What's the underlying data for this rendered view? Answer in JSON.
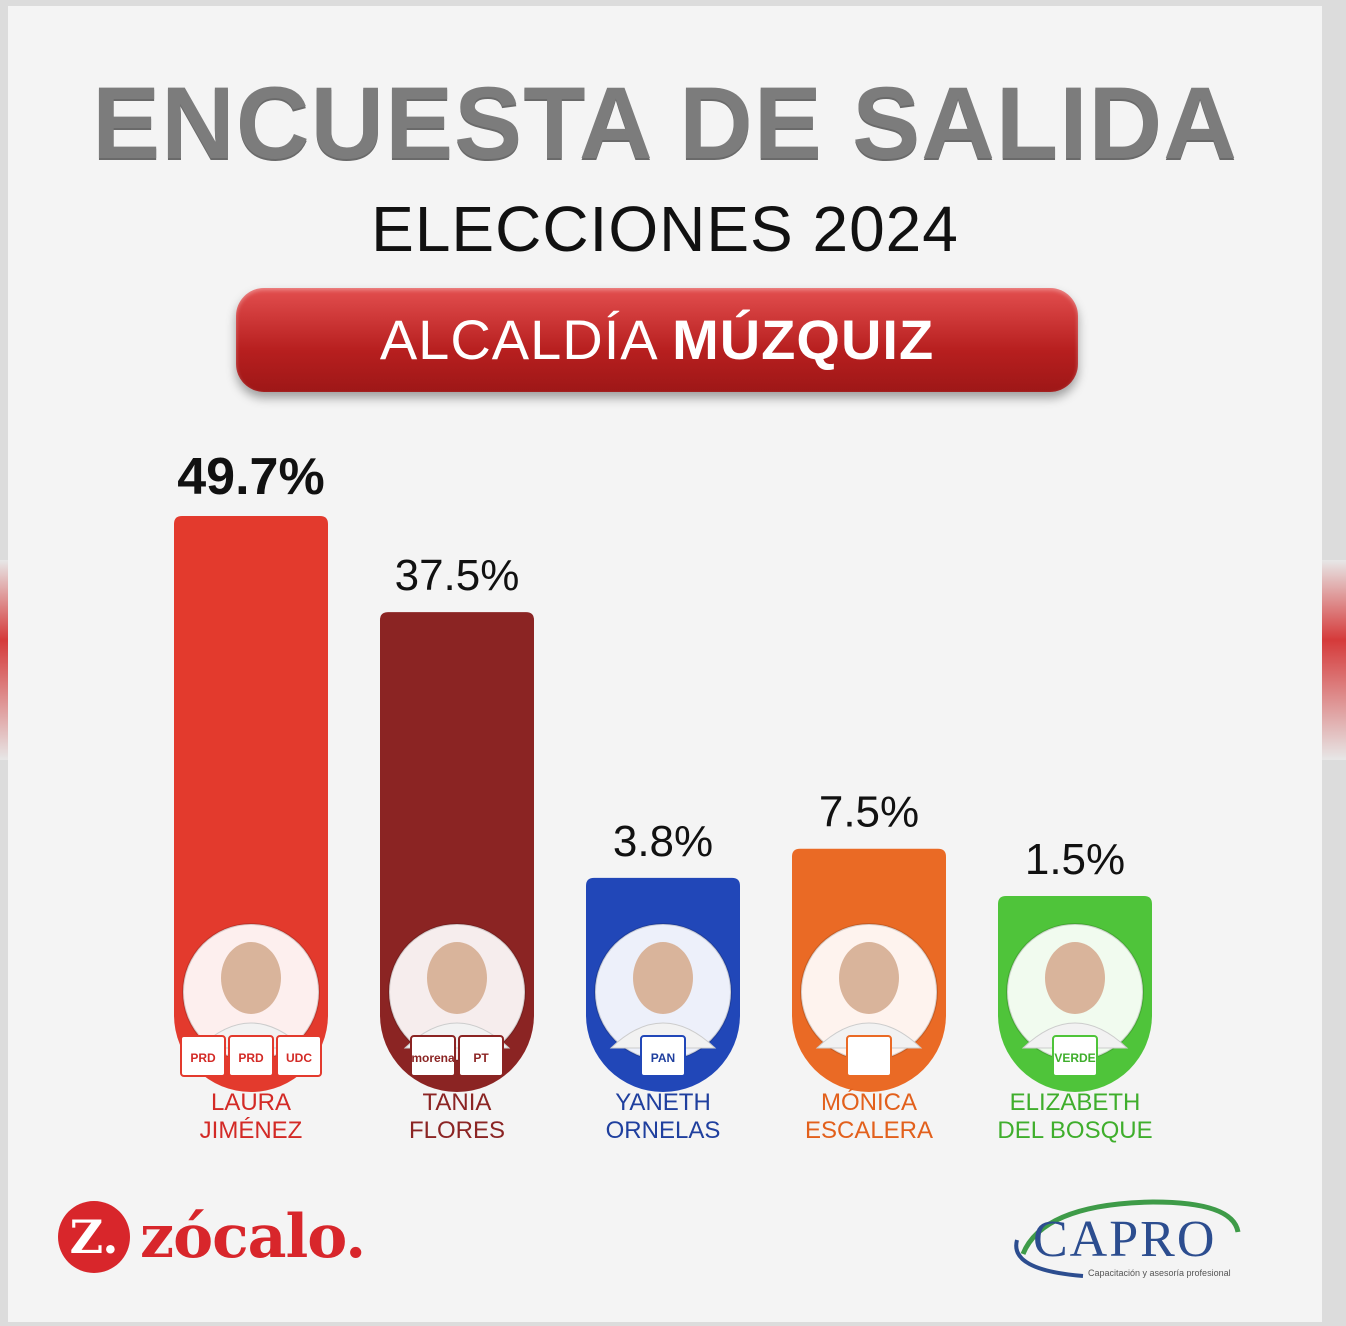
{
  "header": {
    "title": "ENCUESTA DE SALIDA",
    "subtitle": "ELECCIONES 2024",
    "pill_regular": "ALCALDÍA",
    "pill_bold": "MÚZQUIZ"
  },
  "chart_data": {
    "type": "bar",
    "categories": [
      "LAURA JIMÉNEZ",
      "TANIA FLORES",
      "YANETH ORNELAS",
      "MÓNICA ESCALERA",
      "ELIZABETH DEL BOSQUE"
    ],
    "values": [
      49.7,
      37.5,
      3.8,
      7.5,
      1.5
    ],
    "value_labels": [
      "49.7%",
      "37.5%",
      "3.8%",
      "7.5%",
      "1.5%"
    ],
    "ylim": [
      0,
      49.7
    ],
    "grid": false,
    "candidates": [
      {
        "first": "LAURA",
        "last": "JIMÉNEZ",
        "color": "#e33a2d",
        "name_color": "#d32a26",
        "parties": [
          "PRD",
          "PRD",
          "UDC"
        ]
      },
      {
        "first": "TANIA",
        "last": "FLORES",
        "color": "#8b2423",
        "name_color": "#8b2423",
        "parties": [
          "morena",
          "PT"
        ]
      },
      {
        "first": "YANETH",
        "last": "ORNELAS",
        "color": "#2147b8",
        "name_color": "#1f3f9e",
        "parties": [
          "PAN"
        ]
      },
      {
        "first": "MÓNICA",
        "last": "ESCALERA",
        "color": "#ea6a25",
        "name_color": "#e2601c",
        "parties": [
          ""
        ]
      },
      {
        "first": "ELIZABETH",
        "last": "DEL BOSQUE",
        "color": "#4fc43a",
        "name_color": "#3fae2c",
        "parties": [
          "VERDE"
        ]
      }
    ]
  },
  "footer": {
    "zocalo_mark": "Z.",
    "zocalo_word": "zócalo.",
    "capro_word": "CAPRO",
    "capro_tagline": "Capacitación y asesoría profesional"
  }
}
